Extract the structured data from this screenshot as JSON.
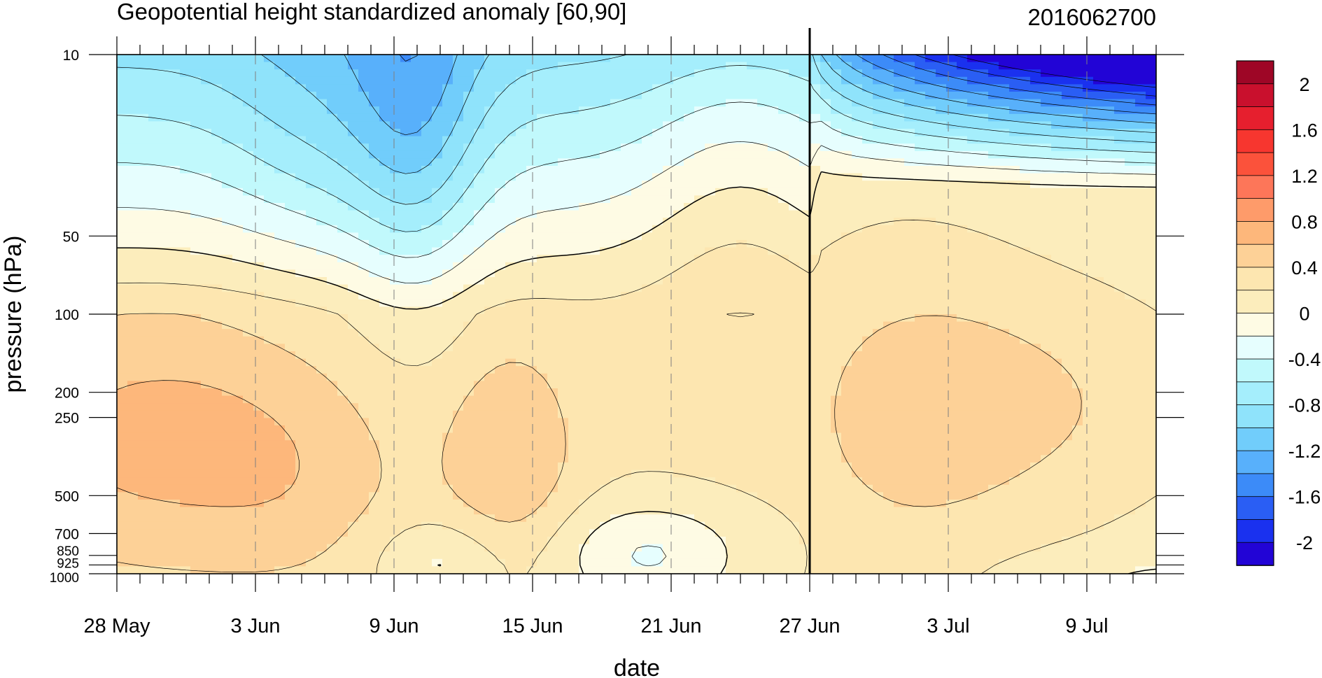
{
  "chart_data": {
    "type": "heatmap",
    "title": "Geopotential height standardized anomaly [60,90]",
    "right_title": "2016062700",
    "xlabel": "date",
    "ylabel": "pressure (hPa)",
    "x_tick_labels": [
      "28 May",
      "3 Jun",
      "9 Jun",
      "15 Jun",
      "21 Jun",
      "27 Jun",
      "3 Jul",
      "9 Jul"
    ],
    "x_tick_days": [
      0,
      6,
      12,
      18,
      24,
      30,
      36,
      42
    ],
    "x_range_days": [
      0,
      45
    ],
    "x_start": "28 May 2016",
    "y_tick_labels": [
      "10",
      "50",
      "100",
      "200",
      "250",
      "500",
      "700",
      "850",
      "925",
      "1000"
    ],
    "y_tick_values": [
      10,
      50,
      100,
      200,
      250,
      500,
      700,
      850,
      925,
      1000
    ],
    "y_range": [
      10,
      1000
    ],
    "y_scale": "log",
    "y_reversed": true,
    "reference_line": {
      "date": "27 Jun",
      "day": 30
    },
    "colorbar": {
      "labels": [
        "2",
        "1.6",
        "1.2",
        "0.8",
        "0.4",
        "0",
        "-0.4",
        "-0.8",
        "-1.2",
        "-1.6",
        "-2"
      ],
      "label_values": [
        2,
        1.6,
        1.2,
        0.8,
        0.4,
        0,
        -0.4,
        -0.8,
        -1.2,
        -1.6,
        -2
      ],
      "levels": [
        -2.2,
        -2.0,
        -1.8,
        -1.6,
        -1.4,
        -1.2,
        -1.0,
        -0.8,
        -0.6,
        -0.4,
        -0.2,
        0.0,
        0.2,
        0.4,
        0.6,
        0.8,
        1.0,
        1.2,
        1.4,
        1.6,
        1.8,
        2.0,
        2.2
      ],
      "colors": [
        "#9e0626",
        "#c9102d",
        "#e61f2e",
        "#f7362f",
        "#fb523b",
        "#fd7659",
        "#fe9b6a",
        "#fdb77b",
        "#fdd197",
        "#fde6b0",
        "#fcedbc",
        "#fefbe4",
        "#e6fefe",
        "#c1f9fc",
        "#a5eefc",
        "#8fe3fb",
        "#71cdfb",
        "#58b0fb",
        "#3c8bf8",
        "#2a5ef4",
        "#1a31ef",
        "#2204d6"
      ]
    },
    "grid": false
  }
}
